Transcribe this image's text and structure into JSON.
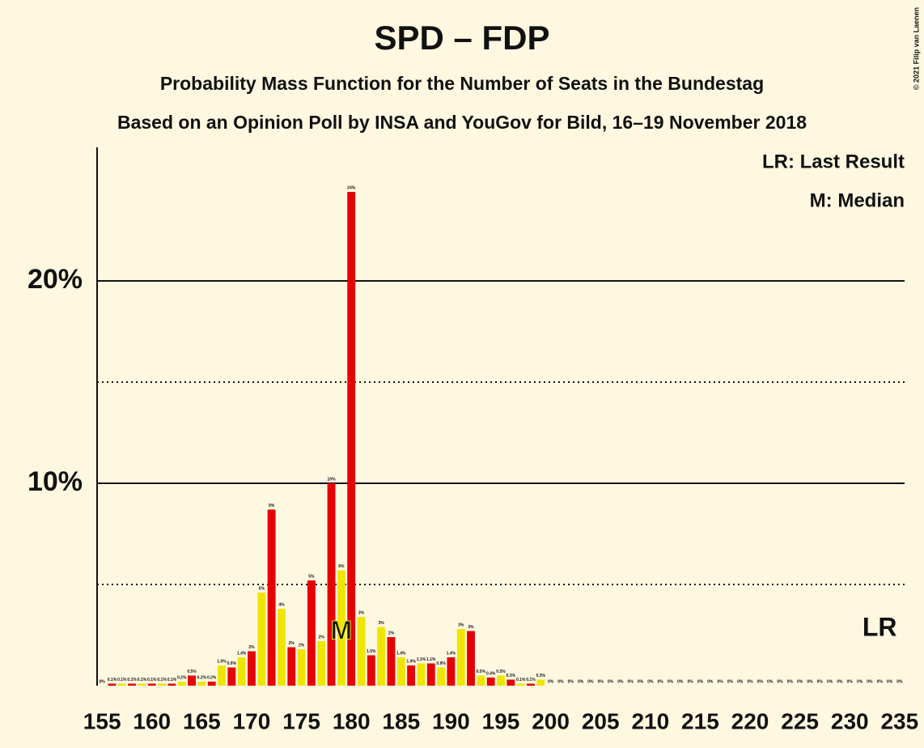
{
  "chart_data": {
    "type": "bar",
    "title": "SPD – FDP",
    "subtitle": "Probability Mass Function for the Number of Seats in the Bundestag",
    "subtitle2": "Based on an Opinion Poll by INSA and YouGov for Bild, 16–19 November 2018",
    "copyright": "© 2021 Filip van Laenen",
    "legend": [
      "LR: Last Result",
      "M: Median"
    ],
    "categories": [
      155,
      null,
      null,
      null,
      null,
      160,
      null,
      null,
      null,
      null,
      165,
      null,
      null,
      null,
      null,
      170,
      null,
      null,
      null,
      null,
      175,
      null,
      null,
      null,
      null,
      180,
      null,
      null,
      null,
      null,
      185,
      null,
      null,
      null,
      null,
      190,
      null,
      null,
      null,
      null,
      195,
      null,
      null,
      null,
      null,
      200,
      null,
      null,
      null,
      null,
      205,
      null,
      null,
      null,
      null,
      210,
      null,
      null,
      null,
      null,
      215,
      null,
      null,
      null,
      null,
      220,
      null,
      null,
      null,
      null,
      225,
      null,
      null,
      null,
      null,
      230,
      null,
      null,
      null,
      null,
      235
    ],
    "values": [
      0,
      0.1,
      0.1,
      0.1,
      0.1,
      0.1,
      0.1,
      0.1,
      0.2,
      0.5,
      0.2,
      0.2,
      1.0,
      0.9,
      1.4,
      1.7,
      4.6,
      8.7,
      3.8,
      1.9,
      1.8,
      5.2,
      2.2,
      10.0,
      5.7,
      24.4,
      3.4,
      1.5,
      2.9,
      2.4,
      1.4,
      1.0,
      1.1,
      1.1,
      0.9,
      1.4,
      2.8,
      2.7,
      0.5,
      0.4,
      0.5,
      0.3,
      0.1,
      0.1,
      0.3,
      0,
      0,
      0,
      0,
      0,
      0,
      0,
      0,
      0,
      0,
      0,
      0,
      0,
      0,
      0,
      0,
      0,
      0,
      0,
      0,
      0,
      0,
      0,
      0,
      0,
      0,
      0,
      0,
      0,
      0,
      0,
      0,
      0,
      0,
      0,
      0
    ],
    "value_labels": [
      "0%",
      "0.1%",
      "0.1%",
      "0.1%",
      "0.1%",
      "0.1%",
      "0.1%",
      "0.1%",
      "0.2%",
      "0.5%",
      "0.2%",
      "0.2%",
      "1.0%",
      "0.9%",
      "1.4%",
      "2%",
      "5%",
      "9%",
      "4%",
      "2%",
      "2%",
      "5%",
      "2%",
      "10%",
      "6%",
      "24%",
      "3%",
      "1.5%",
      "3%",
      "2%",
      "1.4%",
      "1.0%",
      "1.1%",
      "1.1%",
      "0.9%",
      "1.4%",
      "3%",
      "3%",
      "0.5%",
      "0.4%",
      "0.5%",
      "0.3%",
      "0.1%",
      "0.1%",
      "0.3%",
      "0%",
      "0%",
      "0%",
      "0%",
      "0%",
      "0%",
      "0%",
      "0%",
      "0%",
      "0%",
      "0%",
      "0%",
      "0%",
      "0%",
      "0%",
      "0%",
      "0%",
      "0%",
      "0%",
      "0%",
      "0%",
      "0%",
      "0%",
      "0%",
      "0%",
      "0%",
      "0%",
      "0%",
      "0%",
      "0%",
      "0%",
      "0%",
      "0%",
      "0%",
      "0%",
      "0%"
    ],
    "colors": [
      "#f0e500",
      "#e60000"
    ],
    "median": 179,
    "median_label": "M",
    "last_result": 233,
    "last_result_label": "LR",
    "ylim": [
      0,
      26.6
    ],
    "yticks": [
      {
        "value": 10,
        "label": "10%"
      },
      {
        "value": 20,
        "label": "20%"
      }
    ],
    "yminor": [
      5,
      15
    ]
  }
}
